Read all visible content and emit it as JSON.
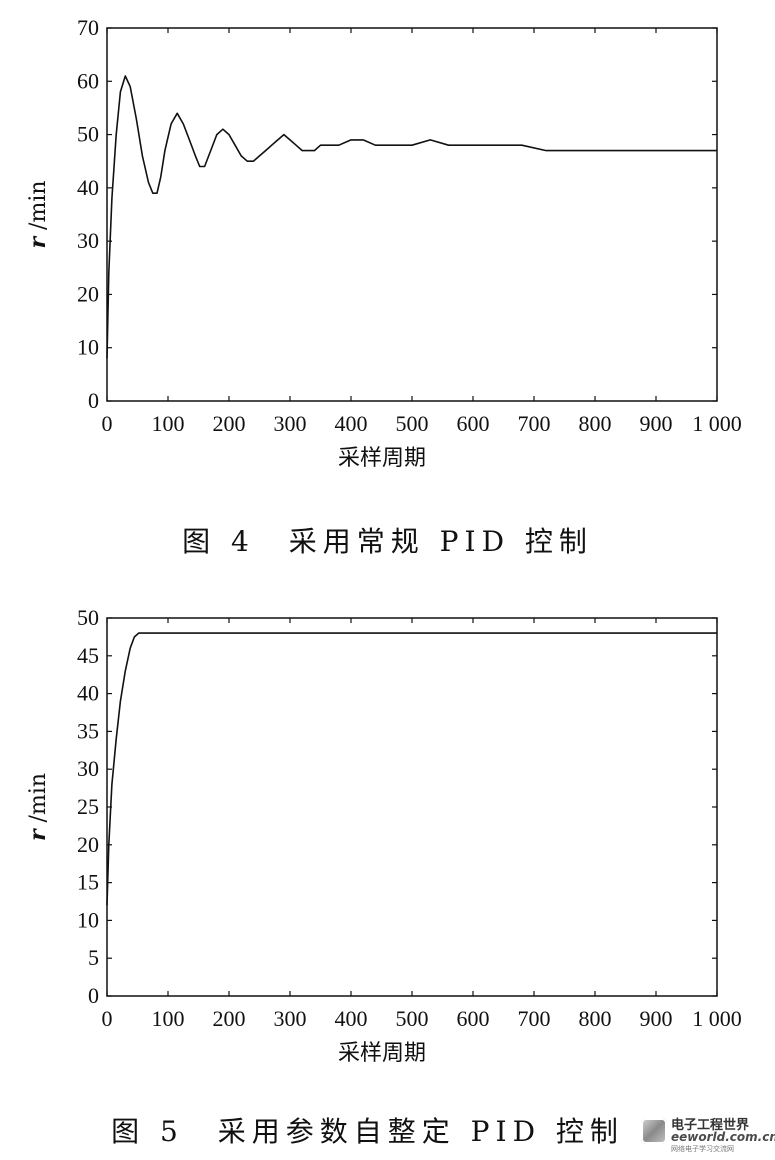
{
  "chart_data": [
    {
      "type": "line",
      "ylabel_var": "r",
      "ylabel_unit": "/min",
      "xlabel": "采样周期",
      "caption": "图 4　采用常规 PID 控制",
      "xlim": [
        0,
        1000
      ],
      "ylim": [
        0,
        70
      ],
      "xticks": [
        0,
        100,
        200,
        300,
        400,
        500,
        600,
        700,
        800,
        900,
        1000
      ],
      "xtick_labels": [
        "0",
        "100",
        "200",
        "300",
        "400",
        "500",
        "600",
        "700",
        "800",
        "900",
        "1 000"
      ],
      "yticks": [
        0,
        10,
        20,
        30,
        40,
        50,
        60,
        70
      ],
      "ytick_labels": [
        "0",
        "10",
        "20",
        "30",
        "40",
        "50",
        "60",
        "70"
      ],
      "series": [
        {
          "x": [
            0,
            3,
            8,
            15,
            22,
            30,
            38,
            48,
            58,
            68,
            75,
            82,
            88,
            95,
            105,
            115,
            125,
            135,
            145,
            152,
            160,
            170,
            180,
            190,
            200,
            210,
            220,
            230,
            240,
            250,
            260,
            270,
            280,
            290,
            300,
            310,
            320,
            330,
            340,
            350,
            360,
            380,
            400,
            420,
            440,
            460,
            480,
            500,
            530,
            560,
            600,
            640,
            680,
            720,
            760,
            800,
            840,
            880,
            920,
            960,
            1000
          ],
          "y": [
            8,
            24,
            38,
            50,
            58,
            61,
            59,
            53,
            46,
            41,
            39,
            39,
            42,
            47,
            52,
            54,
            52,
            49,
            46,
            44,
            44,
            47,
            50,
            51,
            50,
            48,
            46,
            45,
            45,
            46,
            47,
            48,
            49,
            50,
            49,
            48,
            47,
            47,
            47,
            48,
            48,
            48,
            49,
            49,
            48,
            48,
            48,
            48,
            49,
            48,
            48,
            48,
            48,
            47,
            47,
            47,
            47,
            47,
            47,
            47,
            47
          ]
        }
      ]
    },
    {
      "type": "line",
      "ylabel_var": "r",
      "ylabel_unit": "/min",
      "xlabel": "采样周期",
      "caption": "图 5　采用参数自整定 PID 控制",
      "xlim": [
        0,
        1000
      ],
      "ylim": [
        0,
        50
      ],
      "xticks": [
        0,
        100,
        200,
        300,
        400,
        500,
        600,
        700,
        800,
        900,
        1000
      ],
      "xtick_labels": [
        "0",
        "100",
        "200",
        "300",
        "400",
        "500",
        "600",
        "700",
        "800",
        "900",
        "1 000"
      ],
      "yticks": [
        0,
        5,
        10,
        15,
        20,
        25,
        30,
        35,
        40,
        45,
        50
      ],
      "ytick_labels": [
        "0",
        "5",
        "10",
        "15",
        "20",
        "25",
        "30",
        "35",
        "40",
        "45",
        "50"
      ],
      "series": [
        {
          "x": [
            0,
            3,
            8,
            15,
            22,
            30,
            38,
            45,
            52,
            60,
            80,
            120,
            200,
            300,
            400,
            500,
            600,
            700,
            800,
            900,
            1000
          ],
          "y": [
            12,
            20,
            28,
            34,
            39,
            43,
            46,
            47.5,
            48,
            48,
            48,
            48,
            48,
            48,
            48,
            48,
            48,
            48,
            48,
            48,
            48
          ]
        }
      ]
    }
  ],
  "watermark": {
    "cn": "电子工程世界",
    "en": "eeworld.com.cn",
    "sub": "网络电子学习交流网"
  }
}
